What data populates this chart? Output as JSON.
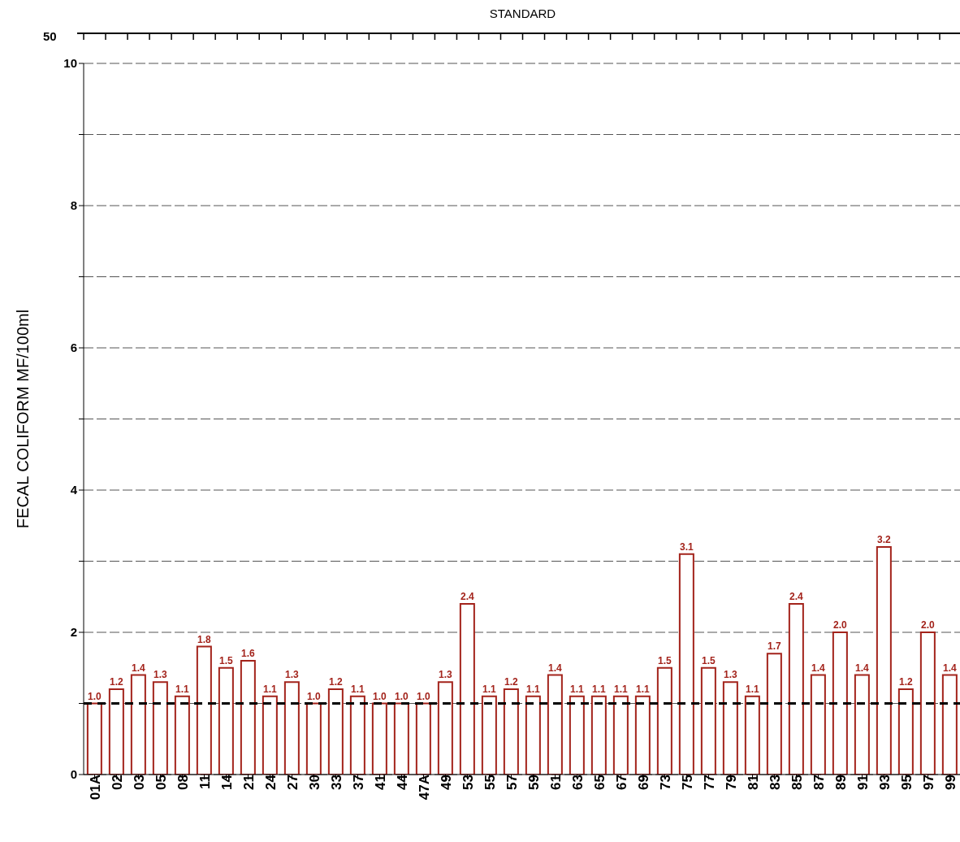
{
  "chart_data": {
    "type": "bar",
    "ylabel": "FECAL COLIFORM MF/100ml",
    "categories": [
      "01A",
      "02",
      "03",
      "05",
      "08",
      "11",
      "14",
      "21",
      "24",
      "27",
      "30",
      "33",
      "37",
      "41",
      "44",
      "47A",
      "49",
      "53",
      "55",
      "57",
      "59",
      "61",
      "63",
      "65",
      "67",
      "69",
      "73",
      "75",
      "77",
      "79",
      "81",
      "83",
      "85",
      "87",
      "89",
      "91",
      "93",
      "95",
      "97",
      "99"
    ],
    "values": [
      1.0,
      1.2,
      1.4,
      1.3,
      1.1,
      1.8,
      1.5,
      1.6,
      1.1,
      1.3,
      1.0,
      1.2,
      1.1,
      1.0,
      1.0,
      1.0,
      1.3,
      2.4,
      1.1,
      1.2,
      1.1,
      1.4,
      1.1,
      1.1,
      1.1,
      1.1,
      1.5,
      3.1,
      1.5,
      1.3,
      1.1,
      1.7,
      2.4,
      1.4,
      2.0,
      1.4,
      3.2,
      1.2,
      2.0,
      1.4
    ],
    "color": "#a3231b",
    "value_labels": [
      "1.0",
      "1.2",
      "1.4",
      "1.3",
      "1.1",
      "1.8",
      "1.5",
      "1.6",
      "1.1",
      "1.3",
      "1.0",
      "1.2",
      "1.1",
      "1.0",
      "1.0",
      "1.0",
      "1.3",
      "2.4",
      "1.1",
      "1.2",
      "1.1",
      "1.4",
      "1.1",
      "1.1",
      "1.1",
      "1.1",
      "1.5",
      "3.1",
      "1.5",
      "1.3",
      "1.1",
      "1.7",
      "2.4",
      "1.4",
      "2.0",
      "1.4",
      "3.2",
      "1.2",
      "2.0",
      "1.4"
    ],
    "ylim": [
      0,
      10
    ],
    "yticks": [
      0,
      {
        "value": 1,
        "label": null
      },
      2,
      {
        "value": 3,
        "label": null
      },
      4,
      {
        "value": 5,
        "label": null
      },
      6,
      {
        "value": 7,
        "label": null
      },
      8,
      {
        "value": 9,
        "label": null
      },
      10
    ],
    "grid": "y",
    "ref_lines": [
      {
        "axis": "y",
        "value": 1,
        "color": "#000000",
        "line_style": "dashed"
      }
    ],
    "annotations": [
      "50",
      "STANDARD"
    ]
  }
}
